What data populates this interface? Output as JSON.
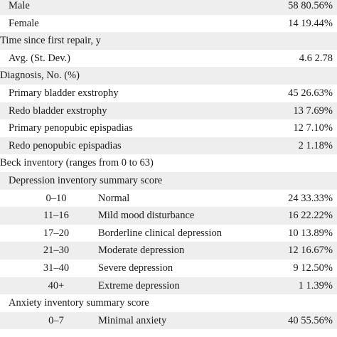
{
  "rows": [
    {
      "type": "item",
      "shaded": true,
      "label": "Male",
      "value": "58 80.56%"
    },
    {
      "type": "item",
      "shaded": false,
      "label": "Female",
      "value": "14 19.44%"
    },
    {
      "type": "section",
      "shaded": true,
      "label": "Time since first repair, y"
    },
    {
      "type": "item",
      "shaded": false,
      "label": "Avg. (St. Dev.)",
      "value": "4.6 2.78"
    },
    {
      "type": "section",
      "shaded": true,
      "label": "Diagnosis, No. (%)"
    },
    {
      "type": "item",
      "shaded": false,
      "label": "Primary bladder exstrophy",
      "value": "45 26.63%"
    },
    {
      "type": "item",
      "shaded": true,
      "label": "Redo bladder exstrophy",
      "value": "13 7.69%"
    },
    {
      "type": "item",
      "shaded": false,
      "label": "Primary penopubic epispadias",
      "value": "12 7.10%"
    },
    {
      "type": "item",
      "shaded": true,
      "label": "Redo penopubic epispadias",
      "value": "2 1.18%"
    },
    {
      "type": "section",
      "shaded": false,
      "label": "Beck inventory (ranges from 0 to 63)"
    },
    {
      "type": "subsection",
      "shaded": true,
      "label": "Depression inventory summary score"
    },
    {
      "type": "range",
      "shaded": false,
      "range": "0–10",
      "label": "Normal",
      "value": "24 33.33%"
    },
    {
      "type": "range",
      "shaded": true,
      "range": "11–16",
      "label": "Mild mood disturbance",
      "value": "16 22.22%"
    },
    {
      "type": "range",
      "shaded": false,
      "range": "17–20",
      "label": "Borderline clinical depression",
      "value": "10 13.89%"
    },
    {
      "type": "range",
      "shaded": true,
      "range": "21–30",
      "label": "Moderate depression",
      "value": "12 16.67%"
    },
    {
      "type": "range",
      "shaded": false,
      "range": "31–40",
      "label": "Severe depression",
      "value": "9 12.50%"
    },
    {
      "type": "range",
      "shaded": true,
      "range": "40+",
      "label": "Extreme depression",
      "value": "1 1.39%"
    },
    {
      "type": "subsection",
      "shaded": false,
      "label": "Anxiety inventory summary score"
    },
    {
      "type": "range",
      "shaded": true,
      "range": "0–7",
      "label": "Minimal anxiety",
      "value": "40 55.56%"
    }
  ]
}
